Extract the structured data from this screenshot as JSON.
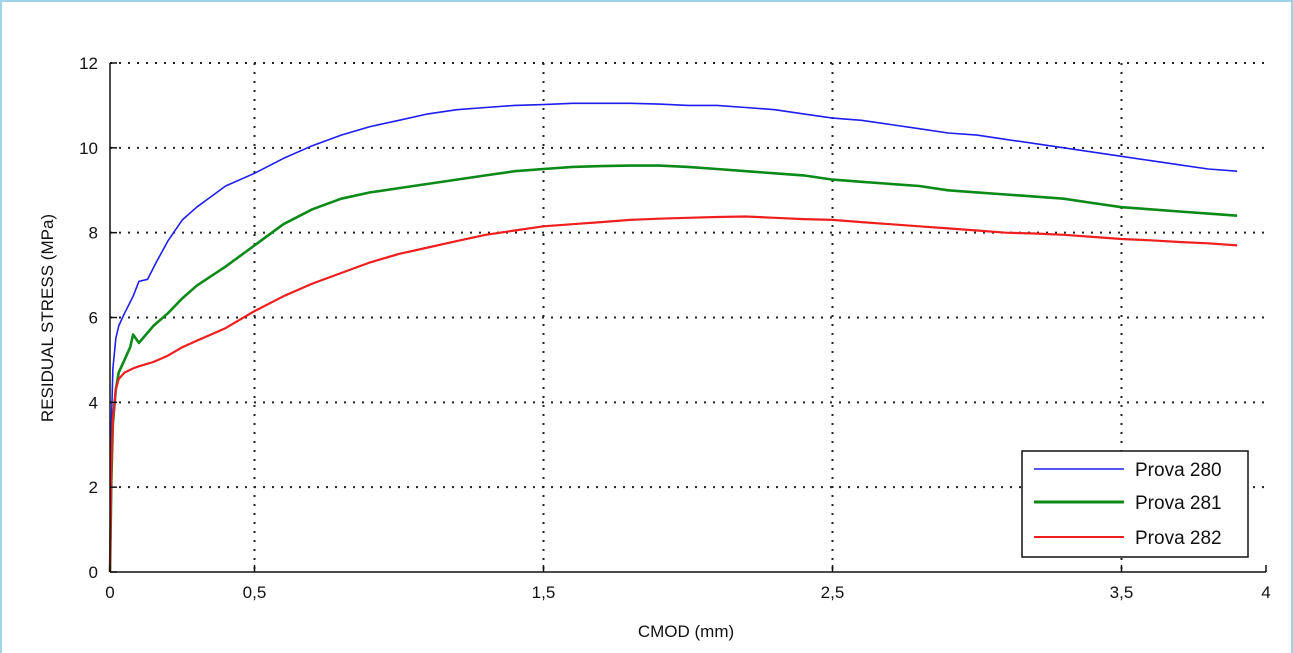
{
  "chart_data": {
    "type": "line",
    "title": "",
    "xlabel": "CMOD (mm)",
    "ylabel": "RESIDUAL STRESS (MPa)",
    "xlim": [
      0,
      4
    ],
    "ylim": [
      0,
      12
    ],
    "x_ticks": [
      "0",
      "0,5",
      "1,5",
      "2,5",
      "3,5",
      "4"
    ],
    "x_tick_values": [
      0,
      0.5,
      1.5,
      2.5,
      3.5,
      4
    ],
    "y_ticks": [
      "0",
      "2",
      "4",
      "6",
      "8",
      "10",
      "12"
    ],
    "y_tick_values": [
      0,
      2,
      4,
      6,
      8,
      10,
      12
    ],
    "grid": true,
    "legend_position": "bottom-right",
    "series": [
      {
        "name": "Prova 280",
        "color": "#1e1ef0",
        "x": [
          0,
          0.005,
          0.01,
          0.02,
          0.03,
          0.05,
          0.08,
          0.1,
          0.13,
          0.16,
          0.2,
          0.25,
          0.3,
          0.35,
          0.4,
          0.5,
          0.6,
          0.7,
          0.8,
          0.9,
          1.0,
          1.1,
          1.2,
          1.3,
          1.4,
          1.5,
          1.6,
          1.7,
          1.8,
          1.9,
          2.0,
          2.1,
          2.2,
          2.3,
          2.4,
          2.5,
          2.6,
          2.7,
          2.8,
          2.9,
          3.0,
          3.1,
          3.2,
          3.3,
          3.4,
          3.5,
          3.6,
          3.7,
          3.8,
          3.9
        ],
        "values": [
          0,
          3.5,
          4.8,
          5.5,
          5.8,
          6.1,
          6.5,
          6.85,
          6.9,
          7.3,
          7.8,
          8.3,
          8.6,
          8.85,
          9.1,
          9.4,
          9.75,
          10.05,
          10.3,
          10.5,
          10.65,
          10.8,
          10.9,
          10.95,
          11.0,
          11.02,
          11.05,
          11.05,
          11.05,
          11.03,
          11.0,
          11.0,
          10.95,
          10.9,
          10.8,
          10.7,
          10.65,
          10.55,
          10.45,
          10.35,
          10.3,
          10.2,
          10.1,
          10.0,
          9.9,
          9.8,
          9.7,
          9.6,
          9.5,
          9.45
        ]
      },
      {
        "name": "Prova 281",
        "color": "#0c8a18",
        "x": [
          0,
          0.005,
          0.01,
          0.02,
          0.03,
          0.05,
          0.07,
          0.08,
          0.1,
          0.15,
          0.2,
          0.25,
          0.3,
          0.4,
          0.5,
          0.6,
          0.7,
          0.8,
          0.9,
          1.0,
          1.1,
          1.2,
          1.3,
          1.4,
          1.5,
          1.6,
          1.7,
          1.8,
          1.9,
          2.0,
          2.1,
          2.2,
          2.3,
          2.4,
          2.5,
          2.6,
          2.7,
          2.8,
          2.9,
          3.0,
          3.1,
          3.2,
          3.3,
          3.4,
          3.5,
          3.6,
          3.7,
          3.8,
          3.9
        ],
        "values": [
          0,
          2.2,
          3.5,
          4.3,
          4.7,
          5.0,
          5.3,
          5.6,
          5.4,
          5.8,
          6.1,
          6.45,
          6.75,
          7.2,
          7.7,
          8.2,
          8.55,
          8.8,
          8.95,
          9.05,
          9.15,
          9.25,
          9.35,
          9.45,
          9.5,
          9.55,
          9.57,
          9.58,
          9.58,
          9.55,
          9.5,
          9.45,
          9.4,
          9.35,
          9.25,
          9.2,
          9.15,
          9.1,
          9.0,
          8.95,
          8.9,
          8.85,
          8.8,
          8.7,
          8.6,
          8.55,
          8.5,
          8.45,
          8.4
        ]
      },
      {
        "name": "Prova 282",
        "color": "#f01e1e",
        "x": [
          0,
          0.005,
          0.01,
          0.02,
          0.03,
          0.05,
          0.08,
          0.1,
          0.15,
          0.2,
          0.25,
          0.3,
          0.35,
          0.4,
          0.5,
          0.6,
          0.7,
          0.8,
          0.9,
          1.0,
          1.1,
          1.2,
          1.3,
          1.4,
          1.5,
          1.6,
          1.7,
          1.8,
          1.9,
          2.0,
          2.1,
          2.2,
          2.3,
          2.4,
          2.5,
          2.6,
          2.7,
          2.8,
          2.9,
          3.0,
          3.1,
          3.2,
          3.3,
          3.4,
          3.5,
          3.6,
          3.7,
          3.8,
          3.9
        ],
        "values": [
          0,
          2.5,
          3.6,
          4.3,
          4.55,
          4.7,
          4.8,
          4.85,
          4.95,
          5.1,
          5.3,
          5.45,
          5.6,
          5.75,
          6.15,
          6.5,
          6.8,
          7.05,
          7.3,
          7.5,
          7.65,
          7.8,
          7.95,
          8.05,
          8.15,
          8.2,
          8.25,
          8.3,
          8.33,
          8.35,
          8.37,
          8.38,
          8.35,
          8.32,
          8.3,
          8.25,
          8.2,
          8.15,
          8.1,
          8.05,
          8.0,
          7.98,
          7.95,
          7.9,
          7.85,
          7.82,
          7.78,
          7.75,
          7.7
        ]
      }
    ]
  }
}
